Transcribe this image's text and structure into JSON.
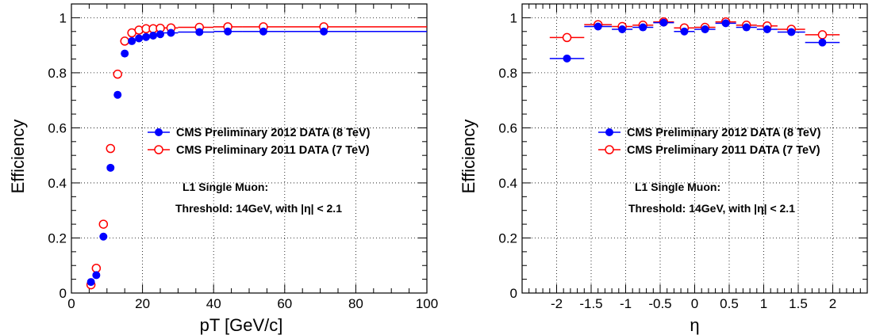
{
  "chart_data": [
    {
      "type": "scatter",
      "title": "",
      "xlabel": "pT [GeV/c]",
      "ylabel": "Efficiency",
      "xlim": [
        0,
        100
      ],
      "ylim": [
        0,
        1.05
      ],
      "x_ticks": [
        "0",
        "20",
        "40",
        "60",
        "80",
        "100"
      ],
      "y_ticks": [
        "0",
        "0.2",
        "0.4",
        "0.6",
        "0.8",
        "1"
      ],
      "grid": true,
      "legend_position": "center-right",
      "series": [
        {
          "name": "CMS Preliminary 2012 DATA (8 TeV)",
          "color": "#0000ff",
          "marker": "filled-circle",
          "points": [
            {
              "x": 5.5,
              "y": 0.04,
              "xlo": 5.0,
              "xhi": 6.0
            },
            {
              "x": 7.0,
              "y": 0.065,
              "xlo": 6.0,
              "xhi": 8.0
            },
            {
              "x": 9.0,
              "y": 0.205,
              "xlo": 8.0,
              "xhi": 10.0
            },
            {
              "x": 11.0,
              "y": 0.455,
              "xlo": 10.0,
              "xhi": 12.0
            },
            {
              "x": 13.0,
              "y": 0.72,
              "xlo": 12.0,
              "xhi": 14.0
            },
            {
              "x": 15.0,
              "y": 0.87,
              "xlo": 14.0,
              "xhi": 16.0
            },
            {
              "x": 17.0,
              "y": 0.915,
              "xlo": 16.0,
              "xhi": 18.0
            },
            {
              "x": 19.0,
              "y": 0.925,
              "xlo": 18.0,
              "xhi": 20.0
            },
            {
              "x": 21.0,
              "y": 0.93,
              "xlo": 20.0,
              "xhi": 22.0
            },
            {
              "x": 23.0,
              "y": 0.935,
              "xlo": 22.0,
              "xhi": 24.0
            },
            {
              "x": 25.0,
              "y": 0.94,
              "xlo": 24.0,
              "xhi": 26.0
            },
            {
              "x": 28.0,
              "y": 0.945,
              "xlo": 26.0,
              "xhi": 30.0
            },
            {
              "x": 36.0,
              "y": 0.948,
              "xlo": 30.0,
              "xhi": 40.0
            },
            {
              "x": 44.0,
              "y": 0.95,
              "xlo": 40.0,
              "xhi": 48.0
            },
            {
              "x": 54.0,
              "y": 0.95,
              "xlo": 48.0,
              "xhi": 60.0
            },
            {
              "x": 71.0,
              "y": 0.95,
              "xlo": 60.0,
              "xhi": 100.0
            }
          ]
        },
        {
          "name": "CMS Preliminary 2011 DATA (7 TeV)",
          "color": "#ff0000",
          "marker": "open-circle",
          "points": [
            {
              "x": 5.5,
              "y": 0.03,
              "xlo": 5.0,
              "xhi": 6.0
            },
            {
              "x": 7.0,
              "y": 0.09,
              "xlo": 6.0,
              "xhi": 8.0
            },
            {
              "x": 9.0,
              "y": 0.25,
              "xlo": 8.0,
              "xhi": 10.0
            },
            {
              "x": 11.0,
              "y": 0.525,
              "xlo": 10.0,
              "xhi": 12.0
            },
            {
              "x": 13.0,
              "y": 0.795,
              "xlo": 12.0,
              "xhi": 14.0
            },
            {
              "x": 15.0,
              "y": 0.915,
              "xlo": 14.0,
              "xhi": 16.0
            },
            {
              "x": 17.0,
              "y": 0.945,
              "xlo": 16.0,
              "xhi": 18.0
            },
            {
              "x": 19.0,
              "y": 0.955,
              "xlo": 18.0,
              "xhi": 20.0
            },
            {
              "x": 21.0,
              "y": 0.96,
              "xlo": 20.0,
              "xhi": 22.0
            },
            {
              "x": 23.0,
              "y": 0.96,
              "xlo": 22.0,
              "xhi": 24.0
            },
            {
              "x": 25.0,
              "y": 0.962,
              "xlo": 24.0,
              "xhi": 26.0
            },
            {
              "x": 28.0,
              "y": 0.963,
              "xlo": 26.0,
              "xhi": 30.0
            },
            {
              "x": 36.0,
              "y": 0.965,
              "xlo": 30.0,
              "xhi": 40.0
            },
            {
              "x": 44.0,
              "y": 0.967,
              "xlo": 40.0,
              "xhi": 48.0
            },
            {
              "x": 54.0,
              "y": 0.967,
              "xlo": 48.0,
              "xhi": 60.0
            },
            {
              "x": 71.0,
              "y": 0.967,
              "xlo": 60.0,
              "xhi": 100.0
            }
          ]
        }
      ],
      "annotations": [
        "L1 Single Muon:",
        "Threshold: 14GeV, with |η| < 2.1"
      ]
    },
    {
      "type": "scatter",
      "title": "",
      "xlabel": "η",
      "ylabel": "Efficiency",
      "xlim": [
        -2.5,
        2.5
      ],
      "ylim": [
        0,
        1.05
      ],
      "x_ticks": [
        "-2",
        "-1.5",
        "-1",
        "-0.5",
        "0",
        "0.5",
        "1",
        "1.5",
        "2"
      ],
      "y_ticks": [
        "0",
        "0.2",
        "0.4",
        "0.6",
        "0.8",
        "1"
      ],
      "grid": true,
      "legend_position": "center-right",
      "series": [
        {
          "name": "CMS Preliminary 2012 DATA (8 TeV)",
          "color": "#0000ff",
          "marker": "filled-circle",
          "points": [
            {
              "x": -1.85,
              "y": 0.852,
              "xlo": -2.1,
              "xhi": -1.6
            },
            {
              "x": -1.4,
              "y": 0.968,
              "xlo": -1.6,
              "xhi": -1.2
            },
            {
              "x": -1.05,
              "y": 0.958,
              "xlo": -1.2,
              "xhi": -0.9
            },
            {
              "x": -0.75,
              "y": 0.965,
              "xlo": -0.9,
              "xhi": -0.6
            },
            {
              "x": -0.45,
              "y": 0.982,
              "xlo": -0.6,
              "xhi": -0.3
            },
            {
              "x": -0.15,
              "y": 0.95,
              "xlo": -0.3,
              "xhi": 0.0
            },
            {
              "x": 0.15,
              "y": 0.958,
              "xlo": 0.0,
              "xhi": 0.3
            },
            {
              "x": 0.45,
              "y": 0.98,
              "xlo": 0.3,
              "xhi": 0.6
            },
            {
              "x": 0.75,
              "y": 0.965,
              "xlo": 0.6,
              "xhi": 0.9
            },
            {
              "x": 1.05,
              "y": 0.958,
              "xlo": 0.9,
              "xhi": 1.2
            },
            {
              "x": 1.4,
              "y": 0.948,
              "xlo": 1.2,
              "xhi": 1.6
            },
            {
              "x": 1.85,
              "y": 0.91,
              "xlo": 1.6,
              "xhi": 2.1
            }
          ]
        },
        {
          "name": "CMS Preliminary 2011 DATA (7 TeV)",
          "color": "#ff0000",
          "marker": "open-circle",
          "points": [
            {
              "x": -1.85,
              "y": 0.928,
              "xlo": -2.1,
              "xhi": -1.6
            },
            {
              "x": -1.4,
              "y": 0.975,
              "xlo": -1.6,
              "xhi": -1.2
            },
            {
              "x": -1.05,
              "y": 0.968,
              "xlo": -1.2,
              "xhi": -0.9
            },
            {
              "x": -0.75,
              "y": 0.973,
              "xlo": -0.9,
              "xhi": -0.6
            },
            {
              "x": -0.45,
              "y": 0.985,
              "xlo": -0.6,
              "xhi": -0.3
            },
            {
              "x": -0.15,
              "y": 0.963,
              "xlo": -0.3,
              "xhi": 0.0
            },
            {
              "x": 0.15,
              "y": 0.965,
              "xlo": 0.0,
              "xhi": 0.3
            },
            {
              "x": 0.45,
              "y": 0.985,
              "xlo": 0.3,
              "xhi": 0.6
            },
            {
              "x": 0.75,
              "y": 0.973,
              "xlo": 0.6,
              "xhi": 0.9
            },
            {
              "x": 1.05,
              "y": 0.97,
              "xlo": 0.9,
              "xhi": 1.2
            },
            {
              "x": 1.4,
              "y": 0.958,
              "xlo": 1.2,
              "xhi": 1.6
            },
            {
              "x": 1.85,
              "y": 0.938,
              "xlo": 1.6,
              "xhi": 2.1
            }
          ]
        }
      ],
      "annotations": [
        "L1 Single Muon:",
        "Threshold: 14GeV, with |η| < 2.1"
      ]
    }
  ]
}
